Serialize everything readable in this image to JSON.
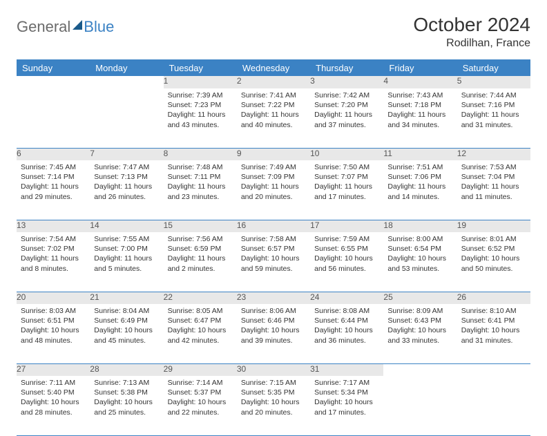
{
  "logo": {
    "part1": "General",
    "part2": "Blue"
  },
  "title": "October 2024",
  "location": "Rodilhan, France",
  "weekdays": [
    "Sunday",
    "Monday",
    "Tuesday",
    "Wednesday",
    "Thursday",
    "Friday",
    "Saturday"
  ],
  "colors": {
    "header_bg": "#3b82c4",
    "header_text": "#ffffff",
    "daynum_bg": "#e8e8e8",
    "border": "#3b82c4",
    "logo_gray": "#6b6b6b",
    "logo_blue": "#3b82c4"
  },
  "weeks": [
    {
      "nums": [
        "",
        "",
        "1",
        "2",
        "3",
        "4",
        "5"
      ],
      "cells": [
        {},
        {},
        {
          "sunrise": "Sunrise: 7:39 AM",
          "sunset": "Sunset: 7:23 PM",
          "day1": "Daylight: 11 hours",
          "day2": "and 43 minutes."
        },
        {
          "sunrise": "Sunrise: 7:41 AM",
          "sunset": "Sunset: 7:22 PM",
          "day1": "Daylight: 11 hours",
          "day2": "and 40 minutes."
        },
        {
          "sunrise": "Sunrise: 7:42 AM",
          "sunset": "Sunset: 7:20 PM",
          "day1": "Daylight: 11 hours",
          "day2": "and 37 minutes."
        },
        {
          "sunrise": "Sunrise: 7:43 AM",
          "sunset": "Sunset: 7:18 PM",
          "day1": "Daylight: 11 hours",
          "day2": "and 34 minutes."
        },
        {
          "sunrise": "Sunrise: 7:44 AM",
          "sunset": "Sunset: 7:16 PM",
          "day1": "Daylight: 11 hours",
          "day2": "and 31 minutes."
        }
      ]
    },
    {
      "nums": [
        "6",
        "7",
        "8",
        "9",
        "10",
        "11",
        "12"
      ],
      "cells": [
        {
          "sunrise": "Sunrise: 7:45 AM",
          "sunset": "Sunset: 7:14 PM",
          "day1": "Daylight: 11 hours",
          "day2": "and 29 minutes."
        },
        {
          "sunrise": "Sunrise: 7:47 AM",
          "sunset": "Sunset: 7:13 PM",
          "day1": "Daylight: 11 hours",
          "day2": "and 26 minutes."
        },
        {
          "sunrise": "Sunrise: 7:48 AM",
          "sunset": "Sunset: 7:11 PM",
          "day1": "Daylight: 11 hours",
          "day2": "and 23 minutes."
        },
        {
          "sunrise": "Sunrise: 7:49 AM",
          "sunset": "Sunset: 7:09 PM",
          "day1": "Daylight: 11 hours",
          "day2": "and 20 minutes."
        },
        {
          "sunrise": "Sunrise: 7:50 AM",
          "sunset": "Sunset: 7:07 PM",
          "day1": "Daylight: 11 hours",
          "day2": "and 17 minutes."
        },
        {
          "sunrise": "Sunrise: 7:51 AM",
          "sunset": "Sunset: 7:06 PM",
          "day1": "Daylight: 11 hours",
          "day2": "and 14 minutes."
        },
        {
          "sunrise": "Sunrise: 7:53 AM",
          "sunset": "Sunset: 7:04 PM",
          "day1": "Daylight: 11 hours",
          "day2": "and 11 minutes."
        }
      ]
    },
    {
      "nums": [
        "13",
        "14",
        "15",
        "16",
        "17",
        "18",
        "19"
      ],
      "cells": [
        {
          "sunrise": "Sunrise: 7:54 AM",
          "sunset": "Sunset: 7:02 PM",
          "day1": "Daylight: 11 hours",
          "day2": "and 8 minutes."
        },
        {
          "sunrise": "Sunrise: 7:55 AM",
          "sunset": "Sunset: 7:00 PM",
          "day1": "Daylight: 11 hours",
          "day2": "and 5 minutes."
        },
        {
          "sunrise": "Sunrise: 7:56 AM",
          "sunset": "Sunset: 6:59 PM",
          "day1": "Daylight: 11 hours",
          "day2": "and 2 minutes."
        },
        {
          "sunrise": "Sunrise: 7:58 AM",
          "sunset": "Sunset: 6:57 PM",
          "day1": "Daylight: 10 hours",
          "day2": "and 59 minutes."
        },
        {
          "sunrise": "Sunrise: 7:59 AM",
          "sunset": "Sunset: 6:55 PM",
          "day1": "Daylight: 10 hours",
          "day2": "and 56 minutes."
        },
        {
          "sunrise": "Sunrise: 8:00 AM",
          "sunset": "Sunset: 6:54 PM",
          "day1": "Daylight: 10 hours",
          "day2": "and 53 minutes."
        },
        {
          "sunrise": "Sunrise: 8:01 AM",
          "sunset": "Sunset: 6:52 PM",
          "day1": "Daylight: 10 hours",
          "day2": "and 50 minutes."
        }
      ]
    },
    {
      "nums": [
        "20",
        "21",
        "22",
        "23",
        "24",
        "25",
        "26"
      ],
      "cells": [
        {
          "sunrise": "Sunrise: 8:03 AM",
          "sunset": "Sunset: 6:51 PM",
          "day1": "Daylight: 10 hours",
          "day2": "and 48 minutes."
        },
        {
          "sunrise": "Sunrise: 8:04 AM",
          "sunset": "Sunset: 6:49 PM",
          "day1": "Daylight: 10 hours",
          "day2": "and 45 minutes."
        },
        {
          "sunrise": "Sunrise: 8:05 AM",
          "sunset": "Sunset: 6:47 PM",
          "day1": "Daylight: 10 hours",
          "day2": "and 42 minutes."
        },
        {
          "sunrise": "Sunrise: 8:06 AM",
          "sunset": "Sunset: 6:46 PM",
          "day1": "Daylight: 10 hours",
          "day2": "and 39 minutes."
        },
        {
          "sunrise": "Sunrise: 8:08 AM",
          "sunset": "Sunset: 6:44 PM",
          "day1": "Daylight: 10 hours",
          "day2": "and 36 minutes."
        },
        {
          "sunrise": "Sunrise: 8:09 AM",
          "sunset": "Sunset: 6:43 PM",
          "day1": "Daylight: 10 hours",
          "day2": "and 33 minutes."
        },
        {
          "sunrise": "Sunrise: 8:10 AM",
          "sunset": "Sunset: 6:41 PM",
          "day1": "Daylight: 10 hours",
          "day2": "and 31 minutes."
        }
      ]
    },
    {
      "nums": [
        "27",
        "28",
        "29",
        "30",
        "31",
        "",
        ""
      ],
      "cells": [
        {
          "sunrise": "Sunrise: 7:11 AM",
          "sunset": "Sunset: 5:40 PM",
          "day1": "Daylight: 10 hours",
          "day2": "and 28 minutes."
        },
        {
          "sunrise": "Sunrise: 7:13 AM",
          "sunset": "Sunset: 5:38 PM",
          "day1": "Daylight: 10 hours",
          "day2": "and 25 minutes."
        },
        {
          "sunrise": "Sunrise: 7:14 AM",
          "sunset": "Sunset: 5:37 PM",
          "day1": "Daylight: 10 hours",
          "day2": "and 22 minutes."
        },
        {
          "sunrise": "Sunrise: 7:15 AM",
          "sunset": "Sunset: 5:35 PM",
          "day1": "Daylight: 10 hours",
          "day2": "and 20 minutes."
        },
        {
          "sunrise": "Sunrise: 7:17 AM",
          "sunset": "Sunset: 5:34 PM",
          "day1": "Daylight: 10 hours",
          "day2": "and 17 minutes."
        },
        {},
        {}
      ]
    }
  ]
}
